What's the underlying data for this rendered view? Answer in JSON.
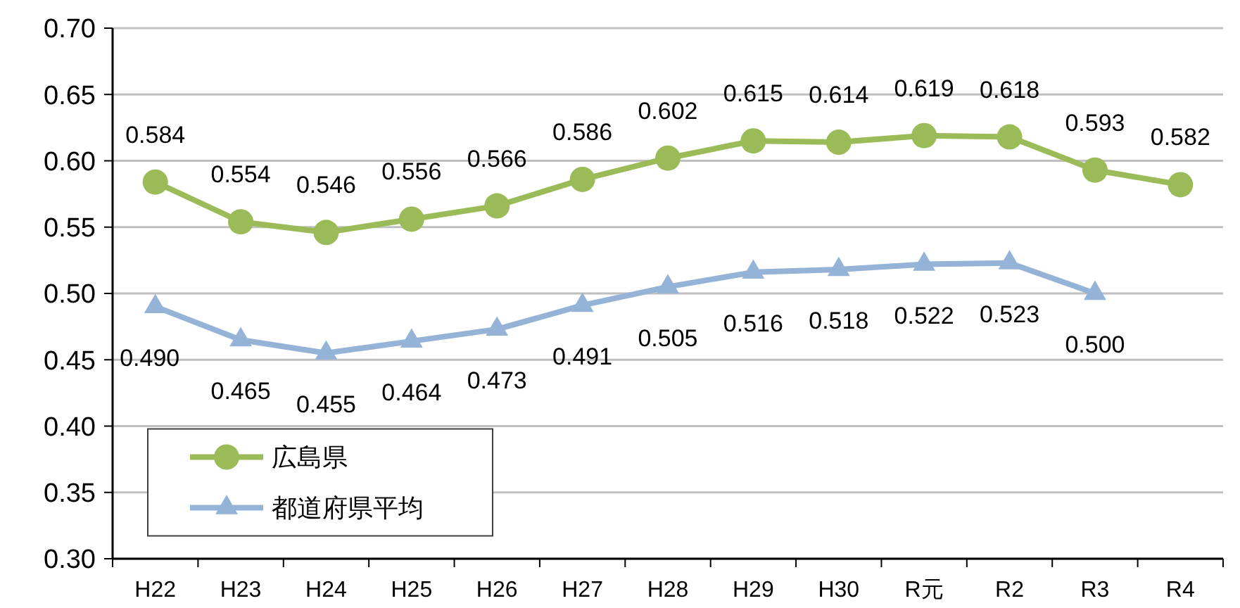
{
  "chart_data": {
    "type": "line",
    "categories": [
      "H22",
      "H23",
      "H24",
      "H25",
      "H26",
      "H27",
      "H28",
      "H29",
      "H30",
      "R元",
      "R2",
      "R3",
      "R4"
    ],
    "series": [
      {
        "name": "広島県",
        "color": "#9bbb59",
        "marker": "circle",
        "values": [
          0.584,
          0.554,
          0.546,
          0.556,
          0.566,
          0.586,
          0.602,
          0.615,
          0.614,
          0.619,
          0.618,
          0.593,
          0.582
        ],
        "value_labels": [
          "0.584",
          "0.554",
          "0.546",
          "0.556",
          "0.566",
          "0.586",
          "0.602",
          "0.615",
          "0.614",
          "0.619",
          "0.618",
          "0.593",
          "0.582"
        ]
      },
      {
        "name": "都道府県平均",
        "color": "#95b3d7",
        "marker": "triangle",
        "values": [
          0.49,
          0.465,
          0.455,
          0.464,
          0.473,
          0.491,
          0.505,
          0.516,
          0.518,
          0.522,
          0.523,
          0.5,
          null
        ],
        "value_labels": [
          "0.490",
          "0.465",
          "0.455",
          "0.464",
          "0.473",
          "0.491",
          "0.505",
          "0.516",
          "0.518",
          "0.522",
          "0.523",
          "0.500",
          null
        ]
      }
    ],
    "ylim": [
      0.3,
      0.7
    ],
    "yticks": [
      {
        "value": 0.3,
        "label": "0.30"
      },
      {
        "value": 0.35,
        "label": "0.35"
      },
      {
        "value": 0.4,
        "label": "0.40"
      },
      {
        "value": 0.45,
        "label": "0.45"
      },
      {
        "value": 0.5,
        "label": "0.50"
      },
      {
        "value": 0.55,
        "label": "0.55"
      },
      {
        "value": 0.6,
        "label": "0.60"
      },
      {
        "value": 0.65,
        "label": "0.65"
      },
      {
        "value": 0.7,
        "label": "0.70"
      }
    ],
    "grid": "y",
    "legend": "bottom left"
  }
}
